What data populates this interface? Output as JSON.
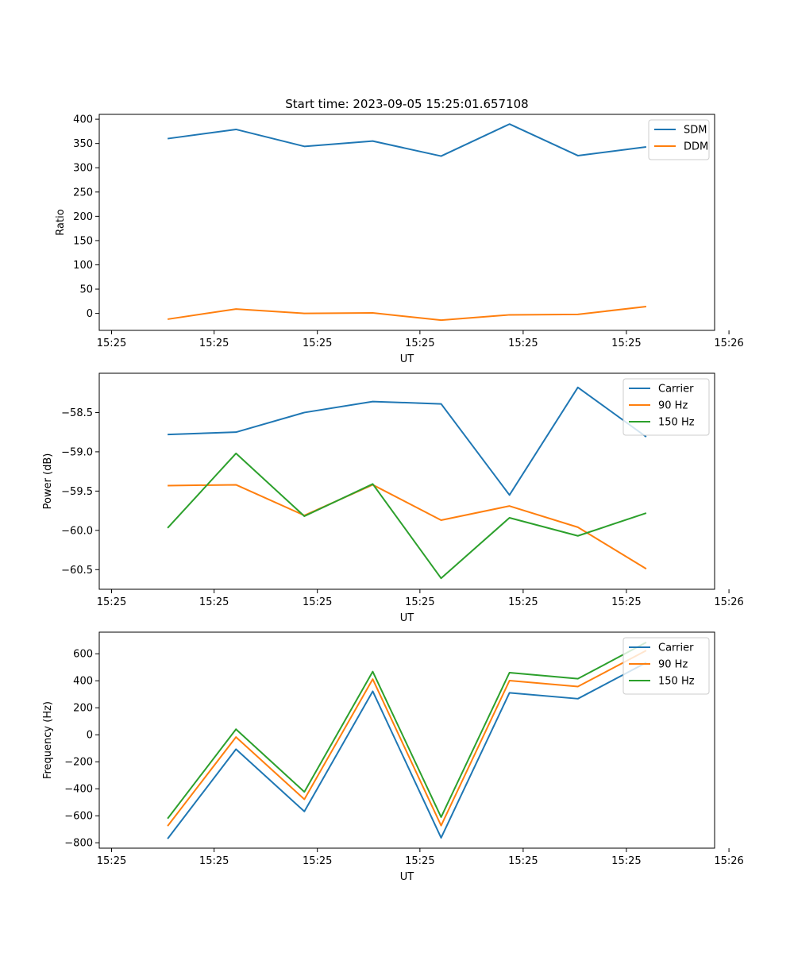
{
  "figure": {
    "title": "Start time: 2023-09-05 15:25:01.657108"
  },
  "colors": {
    "blue": "#1f77b4",
    "orange": "#ff7f0e",
    "green": "#2ca02c"
  },
  "chart_data": [
    {
      "type": "line",
      "ylabel": "Ratio",
      "xlabel": "UT",
      "x_index": [
        1,
        2,
        3,
        4,
        5,
        6,
        7,
        8
      ],
      "xlim": [
        0,
        9
      ],
      "xticks": [
        0.18,
        1.68,
        3.19,
        4.69,
        6.2,
        7.71,
        9.21
      ],
      "xtick_labels": [
        "15:25",
        "15:25",
        "15:25",
        "15:25",
        "15:25",
        "15:25",
        "15:26"
      ],
      "ylim": [
        -35,
        410
      ],
      "yticks": [
        0,
        50,
        100,
        150,
        200,
        250,
        300,
        350,
        400
      ],
      "ytick_labels": [
        "0",
        "50",
        "100",
        "150",
        "200",
        "250",
        "300",
        "350",
        "400"
      ],
      "legend_position": "top-right",
      "series": [
        {
          "name": "SDM",
          "color": "#1f77b4",
          "values": [
            360,
            379,
            344,
            355,
            324,
            390,
            325,
            343
          ]
        },
        {
          "name": "DDM",
          "color": "#ff7f0e",
          "values": [
            -12,
            9,
            0,
            1,
            -14,
            -3,
            -2,
            14
          ]
        }
      ]
    },
    {
      "type": "line",
      "ylabel": "Power (dB)",
      "xlabel": "UT",
      "x_index": [
        1,
        2,
        3,
        4,
        5,
        6,
        7,
        8
      ],
      "xlim": [
        0,
        9
      ],
      "xticks": [
        0.18,
        1.68,
        3.19,
        4.69,
        6.2,
        7.71,
        9.21
      ],
      "xtick_labels": [
        "15:25",
        "15:25",
        "15:25",
        "15:25",
        "15:25",
        "15:25",
        "15:26"
      ],
      "ylim": [
        -60.75,
        -58.0
      ],
      "yticks": [
        -58.5,
        -59.0,
        -59.5,
        -60.0,
        -60.5
      ],
      "ytick_labels": [
        "−58.5",
        "−59.0",
        "−59.5",
        "−60.0",
        "−60.5"
      ],
      "legend_position": "top-right",
      "series": [
        {
          "name": "Carrier",
          "color": "#1f77b4",
          "values": [
            -58.78,
            -58.75,
            -58.5,
            -58.36,
            -58.39,
            -59.55,
            -58.18,
            -58.81
          ]
        },
        {
          "name": "90 Hz",
          "color": "#ff7f0e",
          "values": [
            -59.43,
            -59.42,
            -59.81,
            -59.42,
            -59.87,
            -59.69,
            -59.96,
            -60.49
          ]
        },
        {
          "name": "150 Hz",
          "color": "#2ca02c",
          "values": [
            -59.97,
            -59.02,
            -59.82,
            -59.41,
            -60.61,
            -59.84,
            -60.07,
            -59.78
          ]
        }
      ]
    },
    {
      "type": "line",
      "ylabel": "Frequency (Hz)",
      "xlabel": "UT",
      "x_index": [
        1,
        2,
        3,
        4,
        5,
        6,
        7,
        8
      ],
      "xlim": [
        0,
        9
      ],
      "xticks": [
        0.18,
        1.68,
        3.19,
        4.69,
        6.2,
        7.71,
        9.21
      ],
      "xtick_labels": [
        "15:25",
        "15:25",
        "15:25",
        "15:25",
        "15:25",
        "15:25",
        "15:26"
      ],
      "ylim": [
        -840,
        760
      ],
      "yticks": [
        600,
        400,
        200,
        0,
        -200,
        -400,
        -600,
        -800
      ],
      "ytick_labels": [
        "600",
        "400",
        "200",
        "0",
        "−200",
        "−400",
        "−600",
        "−800"
      ],
      "legend_position": "top-right",
      "series": [
        {
          "name": "Carrier",
          "color": "#1f77b4",
          "values": [
            -770,
            -107,
            -568,
            322,
            -763,
            311,
            267,
            534
          ]
        },
        {
          "name": "90 Hz",
          "color": "#ff7f0e",
          "values": [
            -676,
            -17,
            -478,
            412,
            -673,
            401,
            357,
            624
          ]
        },
        {
          "name": "150 Hz",
          "color": "#2ca02c",
          "values": [
            -621,
            41,
            -423,
            468,
            -610,
            460,
            415,
            684
          ]
        }
      ]
    }
  ]
}
